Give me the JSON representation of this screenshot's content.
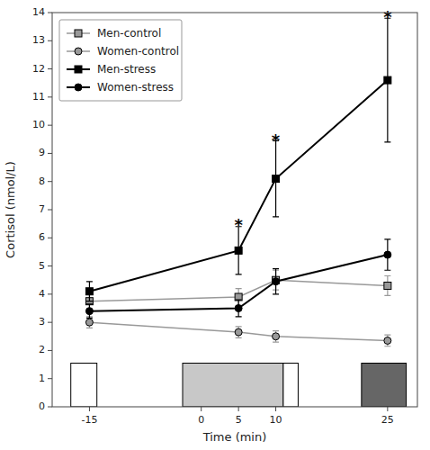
{
  "chart_data": {
    "type": "line",
    "x": [
      -15,
      5,
      10,
      25
    ],
    "series": [
      {
        "name": "Men-control",
        "color": "#999999",
        "marker": "square",
        "values": [
          3.75,
          3.9,
          4.5,
          4.3
        ],
        "errors": [
          0.3,
          0.3,
          0.35,
          0.35
        ]
      },
      {
        "name": "Women-control",
        "color": "#999999",
        "marker": "circle",
        "values": [
          3.0,
          2.65,
          2.5,
          2.35
        ],
        "errors": [
          0.2,
          0.2,
          0.2,
          0.2
        ]
      },
      {
        "name": "Men-stress",
        "color": "#000000",
        "marker": "square",
        "values": [
          4.1,
          5.55,
          8.1,
          11.6
        ],
        "errors": [
          0.35,
          0.85,
          1.35,
          2.2
        ]
      },
      {
        "name": "Women-stress",
        "color": "#000000",
        "marker": "circle",
        "values": [
          3.4,
          3.5,
          4.45,
          5.4
        ],
        "errors": [
          0.25,
          0.3,
          0.45,
          0.55
        ]
      }
    ],
    "annotations": [
      {
        "text": "*",
        "x": 5,
        "y": 6.55
      },
      {
        "text": "*",
        "x": 10,
        "y": 9.55
      },
      {
        "text": "*",
        "x": 25,
        "y": 13.95
      }
    ],
    "boxes": [
      {
        "x": -17.5,
        "y": 0,
        "width": 3.5,
        "height": 1.55,
        "color": "#ffffff"
      },
      {
        "x": -2.5,
        "y": 0,
        "width": 13.5,
        "height": 1.55,
        "color": "#c8c8c8"
      },
      {
        "x": 11.0,
        "y": 0,
        "width": 2.0,
        "height": 1.55,
        "color": "#ffffff"
      },
      {
        "x": 21.5,
        "y": 0,
        "width": 6.0,
        "height": 1.55,
        "color": "#666666"
      }
    ],
    "xlabel": "Time (min)",
    "ylabel": "Cortisol (nmol/L)",
    "xlim": [
      -20,
      29
    ],
    "ylim": [
      0,
      14
    ],
    "xticks": [
      -15,
      0,
      5,
      10,
      25
    ],
    "yticks": [
      0,
      1,
      2,
      3,
      4,
      5,
      6,
      7,
      8,
      9,
      10,
      11,
      12,
      13,
      14
    ],
    "grid": false,
    "legend": "upper left"
  }
}
